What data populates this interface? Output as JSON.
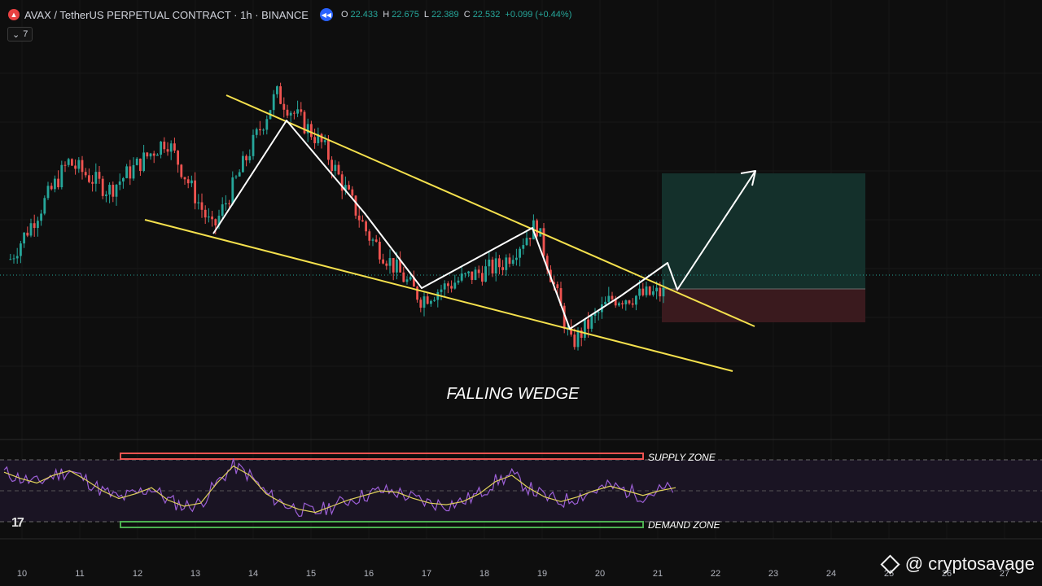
{
  "header": {
    "symbol": "AVAX / TetherUS PERPETUAL CONTRACT · 1h · BINANCE",
    "ohlc": {
      "o_label": "O",
      "o": "22.433",
      "h_label": "H",
      "h": "22.675",
      "l_label": "L",
      "l": "22.389",
      "c_label": "C",
      "c": "22.532",
      "change": "+0.099 (+0.44%)"
    },
    "indicator_count": "7"
  },
  "annotations": {
    "pattern_label": "FALLING WEDGE",
    "supply_label": "SUPPLY ZONE",
    "demand_label": "DEMAND ZONE"
  },
  "watermark": "@ cryptosavage",
  "colors": {
    "background": "#0e0e0e",
    "up_candle": "#26a69a",
    "down_candle": "#ef5350",
    "trend_line": "#f4e04d",
    "rsi_line": "#9c5fd6",
    "rsi_ma": "#e0d25a",
    "target_zone": "#1e5b4f",
    "stop_zone": "#5a1f25"
  },
  "icons": [
    "avax-logo-icon",
    "replay-icon",
    "eye-icon",
    "tradingview-logo-icon",
    "binance-logo-icon"
  ],
  "chart_data": {
    "type": "candlestick",
    "timeframe": "1h",
    "x_ticks": [
      "10",
      "11",
      "12",
      "13",
      "14",
      "15",
      "16",
      "17",
      "18",
      "19",
      "20",
      "21",
      "22",
      "23",
      "24",
      "25",
      "26",
      "27"
    ],
    "key_points_price_path": [
      {
        "day": 9.8,
        "close": 21.7
      },
      {
        "day": 10.8,
        "close": 22.55
      },
      {
        "day": 11.5,
        "close": 22.3
      },
      {
        "day": 12.5,
        "close": 22.75
      },
      {
        "day": 13.3,
        "close": 21.95
      },
      {
        "day": 14.4,
        "close": 23.15
      },
      {
        "day": 15.2,
        "close": 22.7
      },
      {
        "day": 16.0,
        "close": 21.9
      },
      {
        "day": 16.9,
        "close": 21.35
      },
      {
        "day": 17.5,
        "close": 21.5
      },
      {
        "day": 18.3,
        "close": 21.65
      },
      {
        "day": 18.9,
        "close": 22.0
      },
      {
        "day": 19.5,
        "close": 20.95
      },
      {
        "day": 20.2,
        "close": 21.35
      },
      {
        "day": 21.1,
        "close": 21.4
      }
    ],
    "last_close": 22.532,
    "rsi": {
      "values": [
        62,
        58,
        55,
        60,
        63,
        57,
        50,
        45,
        48,
        52,
        44,
        40,
        42,
        55,
        66,
        60,
        48,
        42,
        38,
        36,
        40,
        44,
        47,
        50,
        49,
        45,
        42,
        41,
        43,
        48,
        56,
        60,
        52,
        46,
        43,
        46,
        50,
        53,
        50,
        47,
        50,
        52
      ]
    },
    "grid": true
  }
}
